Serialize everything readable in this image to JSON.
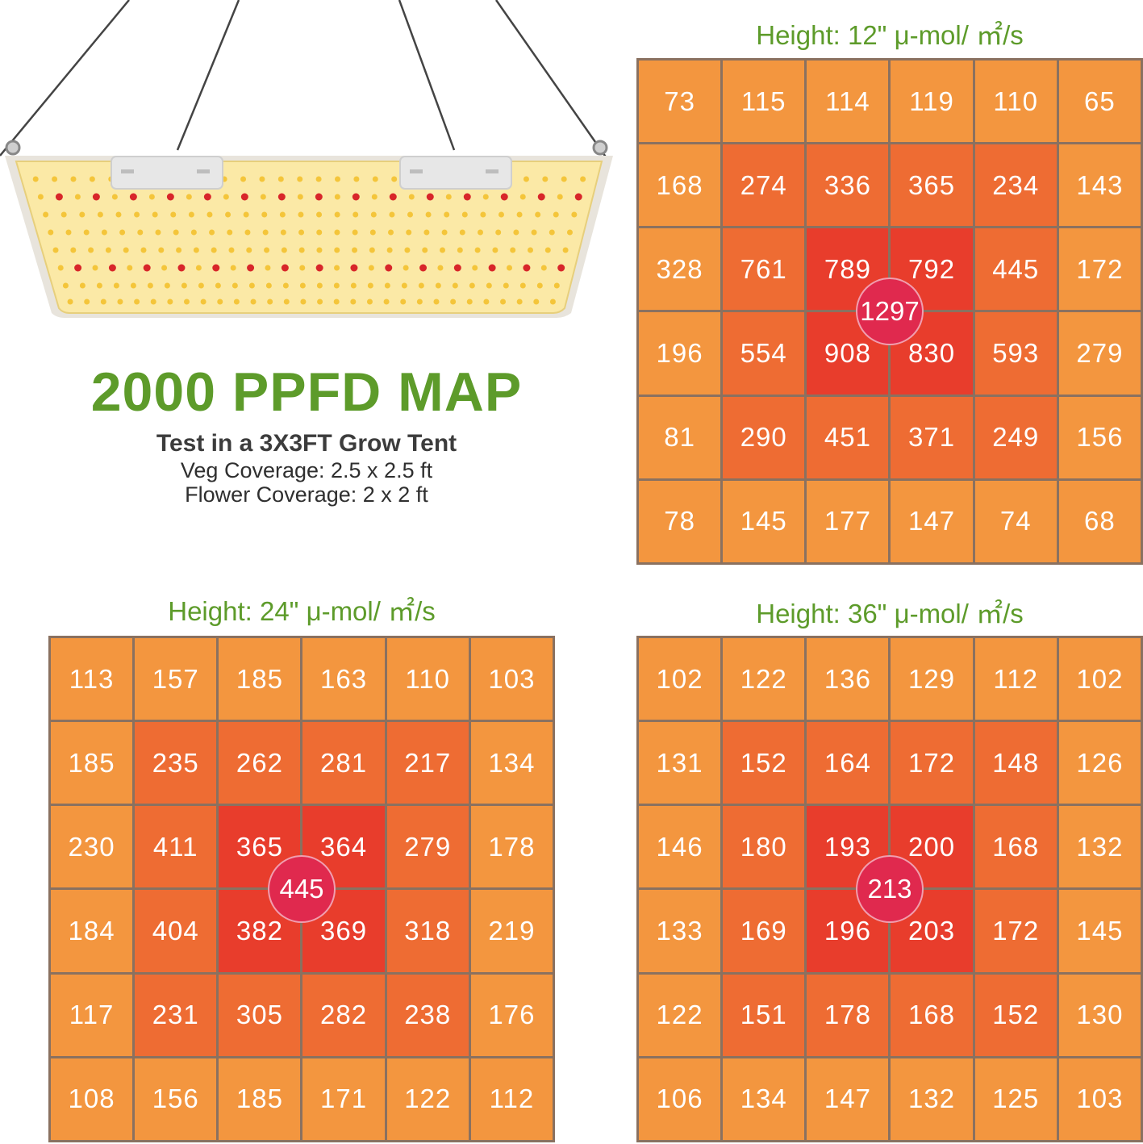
{
  "header": {
    "title": "2000 PPFD MAP",
    "subtitle": "Test in a 3X3FT Grow Tent",
    "veg_coverage": "Veg Coverage: 2.5 x 2.5 ft",
    "flower_coverage": "Flower Coverage: 2 x 2 ft"
  },
  "colors": {
    "title_green": "#5d9b2a",
    "outer_ring": "#f3963f",
    "middle_ring": "#ee6c33",
    "center": "#e83d2c",
    "peak_marker": "#e0294e",
    "grid_lines": "#8a7160"
  },
  "icons": [
    "led-grow-light-panel"
  ],
  "chart_data": [
    {
      "type": "heatmap",
      "title": "Height: 12\" μ-mol/ ㎡/s",
      "rows": [
        [
          73,
          115,
          114,
          119,
          110,
          65
        ],
        [
          168,
          274,
          336,
          365,
          234,
          143
        ],
        [
          328,
          761,
          789,
          792,
          445,
          172
        ],
        [
          196,
          554,
          908,
          830,
          593,
          279
        ],
        [
          81,
          290,
          451,
          371,
          249,
          156
        ],
        [
          78,
          145,
          177,
          147,
          74,
          68
        ]
      ],
      "center_value": 1297
    },
    {
      "type": "heatmap",
      "title": "Height: 24\" μ-mol/ ㎡/s",
      "rows": [
        [
          113,
          157,
          185,
          163,
          110,
          103
        ],
        [
          185,
          235,
          262,
          281,
          217,
          134
        ],
        [
          230,
          411,
          365,
          364,
          279,
          178
        ],
        [
          184,
          404,
          382,
          369,
          318,
          219
        ],
        [
          117,
          231,
          305,
          282,
          238,
          176
        ],
        [
          108,
          156,
          185,
          171,
          122,
          112
        ]
      ],
      "center_value": 445
    },
    {
      "type": "heatmap",
      "title": "Height: 36\" μ-mol/ ㎡/s",
      "rows": [
        [
          102,
          122,
          136,
          129,
          112,
          102
        ],
        [
          131,
          152,
          164,
          172,
          148,
          126
        ],
        [
          146,
          180,
          193,
          200,
          168,
          132
        ],
        [
          133,
          169,
          196,
          203,
          172,
          145
        ],
        [
          122,
          151,
          178,
          168,
          152,
          130
        ],
        [
          106,
          134,
          147,
          132,
          125,
          103
        ]
      ],
      "center_value": 213
    }
  ]
}
